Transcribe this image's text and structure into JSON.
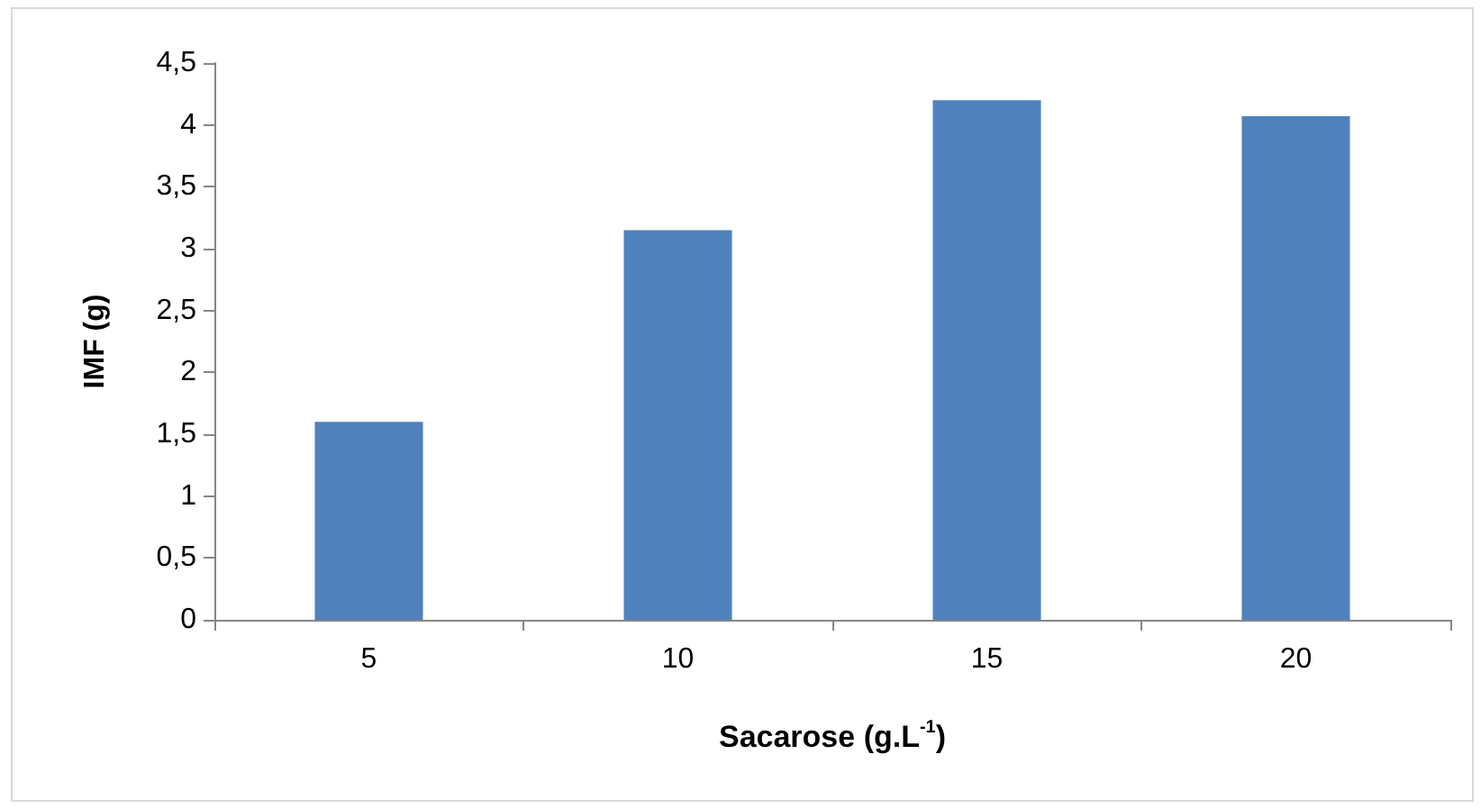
{
  "chart_data": {
    "type": "bar",
    "xlabel": "Sacarose (g.L$^{-1}$)",
    "ylabel": "IMF (g)",
    "categories": [
      "5",
      "10",
      "15",
      "20"
    ],
    "values": [
      1.6,
      3.15,
      4.2,
      4.07
    ],
    "color": "#4f81bd",
    "ylim": [
      0,
      4.5
    ],
    "yticks": [
      0,
      {
        "value": 0.5,
        "label": "0,5"
      },
      1,
      {
        "value": 1.5,
        "label": "1,5"
      },
      2,
      {
        "value": 2.5,
        "label": "2,5"
      },
      3,
      {
        "value": 3.5,
        "label": "3,5"
      },
      4,
      {
        "value": 4.5,
        "label": "4,5"
      }
    ],
    "grid": false,
    "legend": false
  }
}
